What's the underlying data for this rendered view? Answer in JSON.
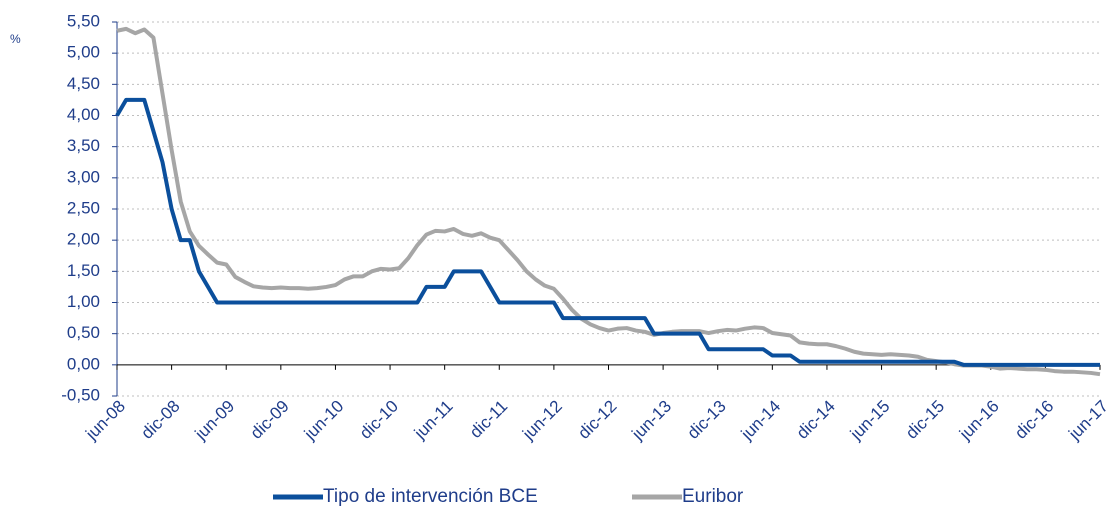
{
  "chart_data": {
    "type": "line",
    "y_unit": "%",
    "categories": [
      "jun-08",
      null,
      null,
      null,
      null,
      null,
      "dic-08",
      null,
      null,
      null,
      null,
      null,
      "jun-09",
      null,
      null,
      null,
      null,
      null,
      "dic-09",
      null,
      null,
      null,
      null,
      null,
      "jun-10",
      null,
      null,
      null,
      null,
      null,
      "dic-10",
      null,
      null,
      null,
      null,
      null,
      "jun-11",
      null,
      null,
      null,
      null,
      null,
      "dic-11",
      null,
      null,
      null,
      null,
      null,
      "jun-12",
      null,
      null,
      null,
      null,
      null,
      "dic-12",
      null,
      null,
      null,
      null,
      null,
      "jun-13",
      null,
      null,
      null,
      null,
      null,
      "dic-13",
      null,
      null,
      null,
      null,
      null,
      "jun-14",
      null,
      null,
      null,
      null,
      null,
      "dic-14",
      null,
      null,
      null,
      null,
      null,
      "jun-15",
      null,
      null,
      null,
      null,
      null,
      "dic-15",
      null,
      null,
      null,
      null,
      null,
      "jun-16",
      null,
      null,
      null,
      null,
      null,
      "dic-16",
      null,
      null,
      null,
      null,
      null,
      "jun-17"
    ],
    "series": [
      {
        "name": "Tipo de intervención BCE",
        "color": "#0b4f9c",
        "values": [
          4.0,
          4.25,
          4.25,
          4.25,
          3.75,
          3.25,
          2.5,
          2.0,
          2.0,
          1.5,
          1.25,
          1.0,
          1.0,
          1.0,
          1.0,
          1.0,
          1.0,
          1.0,
          1.0,
          1.0,
          1.0,
          1.0,
          1.0,
          1.0,
          1.0,
          1.0,
          1.0,
          1.0,
          1.0,
          1.0,
          1.0,
          1.0,
          1.0,
          1.0,
          1.25,
          1.25,
          1.25,
          1.5,
          1.5,
          1.5,
          1.5,
          1.25,
          1.0,
          1.0,
          1.0,
          1.0,
          1.0,
          1.0,
          1.0,
          0.75,
          0.75,
          0.75,
          0.75,
          0.75,
          0.75,
          0.75,
          0.75,
          0.75,
          0.75,
          0.5,
          0.5,
          0.5,
          0.5,
          0.5,
          0.5,
          0.25,
          0.25,
          0.25,
          0.25,
          0.25,
          0.25,
          0.25,
          0.15,
          0.15,
          0.15,
          0.05,
          0.05,
          0.05,
          0.05,
          0.05,
          0.05,
          0.05,
          0.05,
          0.05,
          0.05,
          0.05,
          0.05,
          0.05,
          0.05,
          0.05,
          0.05,
          0.05,
          0.05,
          0,
          0,
          0,
          0,
          0,
          0,
          0,
          0,
          0,
          0,
          0,
          0,
          0,
          0,
          0,
          0
        ]
      },
      {
        "name": "Euribor",
        "color": "#a6a6a6",
        "values": [
          5.36,
          5.39,
          5.32,
          5.38,
          5.25,
          4.35,
          3.45,
          2.62,
          2.14,
          1.91,
          1.77,
          1.64,
          1.61,
          1.41,
          1.33,
          1.26,
          1.24,
          1.23,
          1.24,
          1.23,
          1.23,
          1.22,
          1.23,
          1.25,
          1.28,
          1.37,
          1.42,
          1.42,
          1.5,
          1.54,
          1.53,
          1.55,
          1.71,
          1.92,
          2.09,
          2.15,
          2.14,
          2.18,
          2.1,
          2.07,
          2.11,
          2.04,
          2.0,
          1.84,
          1.68,
          1.5,
          1.37,
          1.27,
          1.22,
          1.06,
          0.88,
          0.74,
          0.65,
          0.59,
          0.55,
          0.58,
          0.59,
          0.55,
          0.53,
          0.48,
          0.51,
          0.53,
          0.54,
          0.54,
          0.54,
          0.51,
          0.54,
          0.56,
          0.55,
          0.58,
          0.6,
          0.59,
          0.51,
          0.49,
          0.47,
          0.36,
          0.34,
          0.33,
          0.33,
          0.3,
          0.26,
          0.21,
          0.18,
          0.17,
          0.16,
          0.17,
          0.16,
          0.15,
          0.13,
          0.08,
          0.06,
          0.04,
          0.01,
          -0.01,
          -0.01,
          -0.01,
          -0.03,
          -0.06,
          -0.05,
          -0.06,
          -0.07,
          -0.07,
          -0.08,
          -0.1,
          -0.11,
          -0.11,
          -0.12,
          -0.13,
          -0.15
        ]
      }
    ],
    "ylim": [
      -0.5,
      5.5
    ],
    "yticks": [
      {
        "value": -0.5,
        "label": "-0,50"
      },
      {
        "value": 0,
        "label": "0,00"
      },
      {
        "value": 0.5,
        "label": "0,50"
      },
      {
        "value": 1,
        "label": "1,00"
      },
      {
        "value": 1.5,
        "label": "1,50"
      },
      {
        "value": 2,
        "label": "2,00"
      },
      {
        "value": 2.5,
        "label": "2,50"
      },
      {
        "value": 3,
        "label": "3,00"
      },
      {
        "value": 3.5,
        "label": "3,50"
      },
      {
        "value": 4,
        "label": "4,00"
      },
      {
        "value": 4.5,
        "label": "4,50"
      },
      {
        "value": 5,
        "label": "5,00"
      },
      {
        "value": 5.5,
        "label": "5,50"
      }
    ],
    "grid": true,
    "legend": "bottom"
  }
}
